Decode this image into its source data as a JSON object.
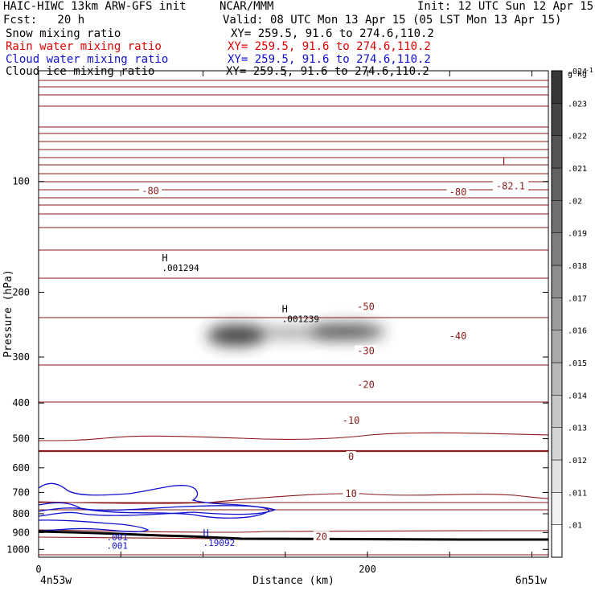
{
  "header": {
    "model": "HAIC-HIWC 13km ARW-GFS init",
    "org": "NCAR/MMM",
    "init": "Init: 12 UTC Sun 12 Apr 15",
    "fcst": "Fcst:   20 h",
    "valid": "Valid: 08 UTC Mon 13 Apr 15 (05 LST Mon 13 Apr 15)"
  },
  "fields": [
    {
      "name": "Snow mixing ratio",
      "xy": "XY= 259.5, 91.6 to 274.6,110.2",
      "color": "#000000"
    },
    {
      "name": "Rain water mixing ratio",
      "xy": "XY= 259.5, 91.6 to 274.6,110.2",
      "color": "#e00000"
    },
    {
      "name": "Cloud water mixing ratio",
      "xy": "XY= 259.5, 91.6 to 274.6,110.2",
      "color": "#1010d0"
    },
    {
      "name": "Cloud ice mixing ratio",
      "xy": "XY= 259.5, 91.6 to 274.6,110.2",
      "color": "#000000"
    }
  ],
  "chart_data": {
    "type": "contour cross-section",
    "xlabel": "Distance (km)",
    "ylabel": "Pressure (hPa)",
    "xlim": [
      0,
      310
    ],
    "ylim": [
      1050,
      50
    ],
    "y_scale": "log",
    "x_ticks": [
      0,
      200
    ],
    "y_ticks": [
      100,
      200,
      300,
      400,
      500,
      600,
      700,
      800,
      900,
      1000
    ],
    "x_endpoints": [
      "4n53w",
      "6n51w"
    ],
    "colorbar": {
      "unit": "g kg",
      "unit_exponent": "-1",
      "labels": [
        ".01",
        ".011",
        ".012",
        ".013",
        ".014",
        ".015",
        ".016",
        ".017",
        ".018",
        ".019",
        ".02",
        ".021",
        ".022",
        ".023",
        ".024"
      ]
    },
    "temperature_labels": [
      {
        "label": "-80",
        "x": 68,
        "p": 106
      },
      {
        "label": "-80",
        "x": 255,
        "p": 107
      },
      {
        "label": "-82.1",
        "x": 287,
        "p": 103
      },
      {
        "label": "-50",
        "x": 199,
        "p": 219
      },
      {
        "label": "-40",
        "x": 255,
        "p": 263
      },
      {
        "label": "-30",
        "x": 199,
        "p": 289
      },
      {
        "label": "-20",
        "x": 199,
        "p": 357
      },
      {
        "label": "-10",
        "x": 190,
        "p": 446
      },
      {
        "label": "0",
        "x": 190,
        "p": 560
      },
      {
        "label": "10",
        "x": 190,
        "p": 706
      },
      {
        "label": "20",
        "x": 172,
        "p": 923
      }
    ],
    "extrema": [
      {
        "label": "L",
        "x": 282,
        "p": 93
      },
      {
        "label": "H",
        "value": ".001294",
        "x": 75,
        "p": 170
      },
      {
        "label": "H",
        "value": ".001239",
        "x": 148,
        "p": 234
      },
      {
        "label": "H",
        "value": ".19092",
        "x": 100,
        "p": 950
      }
    ],
    "cloud_water_labels": [
      {
        "label": ".001",
        "x": 38,
        "p": 925
      },
      {
        "label": ".001",
        "x": 38,
        "p": 975
      }
    ],
    "ice_maxima": [
      {
        "x": 120,
        "p": 262,
        "value": 0.023
      },
      {
        "x": 188,
        "p": 256,
        "value": 0.022
      }
    ]
  }
}
